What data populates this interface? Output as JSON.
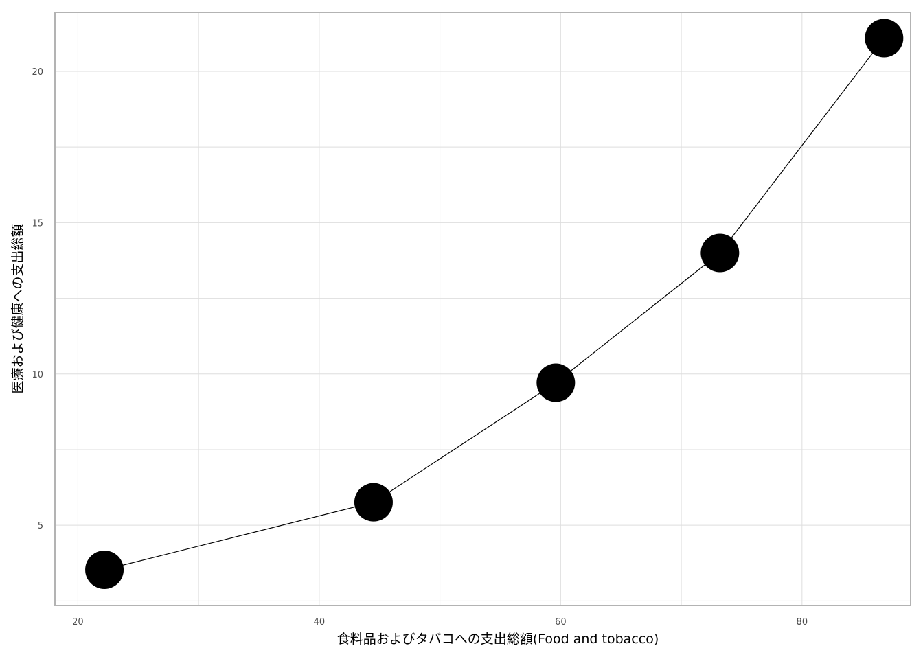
{
  "chart_data": {
    "type": "line",
    "title": "",
    "xlabel": "食料品およびタバコへの支出総額(Food and tobacco)",
    "ylabel": "医療および健康への支出総額",
    "xlim": [
      18.1,
      89.0
    ],
    "ylim": [
      2.35,
      21.95
    ],
    "x_ticks": [
      20,
      40,
      60,
      80
    ],
    "y_ticks": [
      5,
      10,
      15,
      20
    ],
    "x_tick_labels": [
      "20",
      "40",
      "60",
      "80"
    ],
    "y_tick_labels": [
      "5",
      "10",
      "15",
      "20"
    ],
    "grid": true,
    "series": [
      {
        "x": [
          22.2,
          44.5,
          59.6,
          73.2,
          86.8
        ],
        "y": [
          3.53,
          5.76,
          9.71,
          14.0,
          21.1
        ],
        "color": "#000000",
        "marker": "circle"
      }
    ]
  },
  "style": {
    "background": "#ffffff",
    "panel_border": "#b3b3b3",
    "grid_color": "#dedede",
    "line_color": "#000000",
    "point_color": "#000000"
  }
}
